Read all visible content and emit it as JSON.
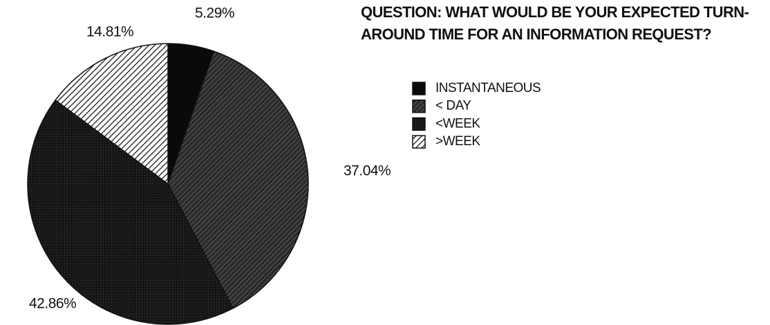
{
  "chart_data": {
    "type": "pie",
    "title": "QUESTION: WHAT WOULD BE YOUR EXPECTED TURN-AROUND TIME FOR AN INFORMATION REQUEST?",
    "categories": [
      "INSTANTANEOUS",
      "< DAY",
      "<WEEK",
      ">WEEK"
    ],
    "values": [
      5.29,
      37.04,
      42.86,
      14.81
    ],
    "value_labels": [
      "5.29%",
      "37.04%",
      "42.86%",
      "14.81%"
    ],
    "colors": [
      "#0a0a0a",
      "#2b2b2b",
      "#161616",
      "#ffffff"
    ],
    "patterns": [
      "solid",
      "hatch",
      "dots",
      "hatch"
    ],
    "legend": "right"
  }
}
